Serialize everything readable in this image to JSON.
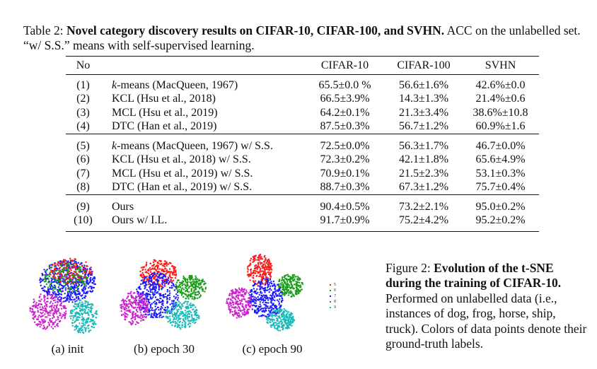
{
  "table": {
    "label": "Table 2:",
    "title": "Novel category discovery results on CIFAR-10, CIFAR-100, and SVHN.",
    "rest": "ACC on the unlabelled set. “w/ S.S.” means with self-supervised learning.",
    "headers": [
      "No",
      "",
      "CIFAR-10",
      "CIFAR-100",
      "SVHN"
    ],
    "groups": [
      [
        {
          "no": "(1)",
          "k": "k",
          "method": "-means (MacQueen, 1967)",
          "vals": [
            "65.5±0.0 %",
            "56.6±1.6%",
            "42.6%±0.0"
          ],
          "bold": false
        },
        {
          "no": "(2)",
          "k": "",
          "method": "KCL (Hsu et al., 2018)",
          "vals": [
            "66.5±3.9%",
            "14.3±1.3%",
            "21.4%±0.6"
          ],
          "bold": false
        },
        {
          "no": "(3)",
          "k": "",
          "method": "MCL (Hsu et al., 2019)",
          "vals": [
            "64.2±0.1%",
            "21.3±3.4%",
            "38.6%±10.8"
          ],
          "bold": false
        },
        {
          "no": "(4)",
          "k": "",
          "method": "DTC (Han et al., 2019)",
          "vals": [
            "87.5±0.3%",
            "56.7±1.2%",
            "60.9%±1.6"
          ],
          "bold": false
        }
      ],
      [
        {
          "no": "(5)",
          "k": "k",
          "method": "-means (MacQueen, 1967) w/ S.S.",
          "vals": [
            "72.5±0.0%",
            "56.3±1.7%",
            "46.7±0.0%"
          ],
          "bold": false
        },
        {
          "no": "(6)",
          "k": "",
          "method": "KCL (Hsu et al., 2018) w/ S.S.",
          "vals": [
            "72.3±0.2%",
            "42.1±1.8%",
            "65.6±4.9%"
          ],
          "bold": false
        },
        {
          "no": "(7)",
          "k": "",
          "method": "MCL (Hsu et al., 2019) w/ S.S.",
          "vals": [
            "70.9±0.1%",
            "21.5±2.3%",
            "53.1±0.3%"
          ],
          "bold": false
        },
        {
          "no": "(8)",
          "k": "",
          "method": "DTC (Han et al., 2019) w/ S.S.",
          "vals": [
            "88.7±0.3%",
            "67.3±1.2%",
            "75.7±0.4%"
          ],
          "bold": false
        }
      ],
      [
        {
          "no": "(9)",
          "k": "",
          "method": "Ours",
          "vals": [
            "90.4±0.5%",
            "73.2±2.1%",
            "95.0±0.2%"
          ],
          "bold": true
        },
        {
          "no": "(10)",
          "k": "",
          "method": "Ours w/ I.L.",
          "vals": [
            "91.7±0.9%",
            "75.2±4.2%",
            "95.2±0.2%"
          ],
          "bold": true
        }
      ]
    ]
  },
  "figure": {
    "label": "Figure 2:",
    "title": "Evolution of the t-SNE during the training of CIFAR-10.",
    "rest": "Performed on unlabelled data (i.e., instances of dog, frog, horse, ship, truck). Colors of data points denote their ground-truth labels.",
    "subfigures": [
      {
        "label": "(a) init",
        "seed": 7
      },
      {
        "label": "(b) epoch 30",
        "seed": 31
      },
      {
        "label": "(c) epoch 90",
        "seed": 90
      }
    ],
    "legend": [
      {
        "label": "5",
        "color": "#ff1a1a"
      },
      {
        "label": "6",
        "color": "#1a9e1a"
      },
      {
        "label": "7",
        "color": "#1a1aff"
      },
      {
        "label": "8",
        "color": "#cc22cc"
      },
      {
        "label": "9",
        "color": "#1ab8b8"
      }
    ]
  }
}
